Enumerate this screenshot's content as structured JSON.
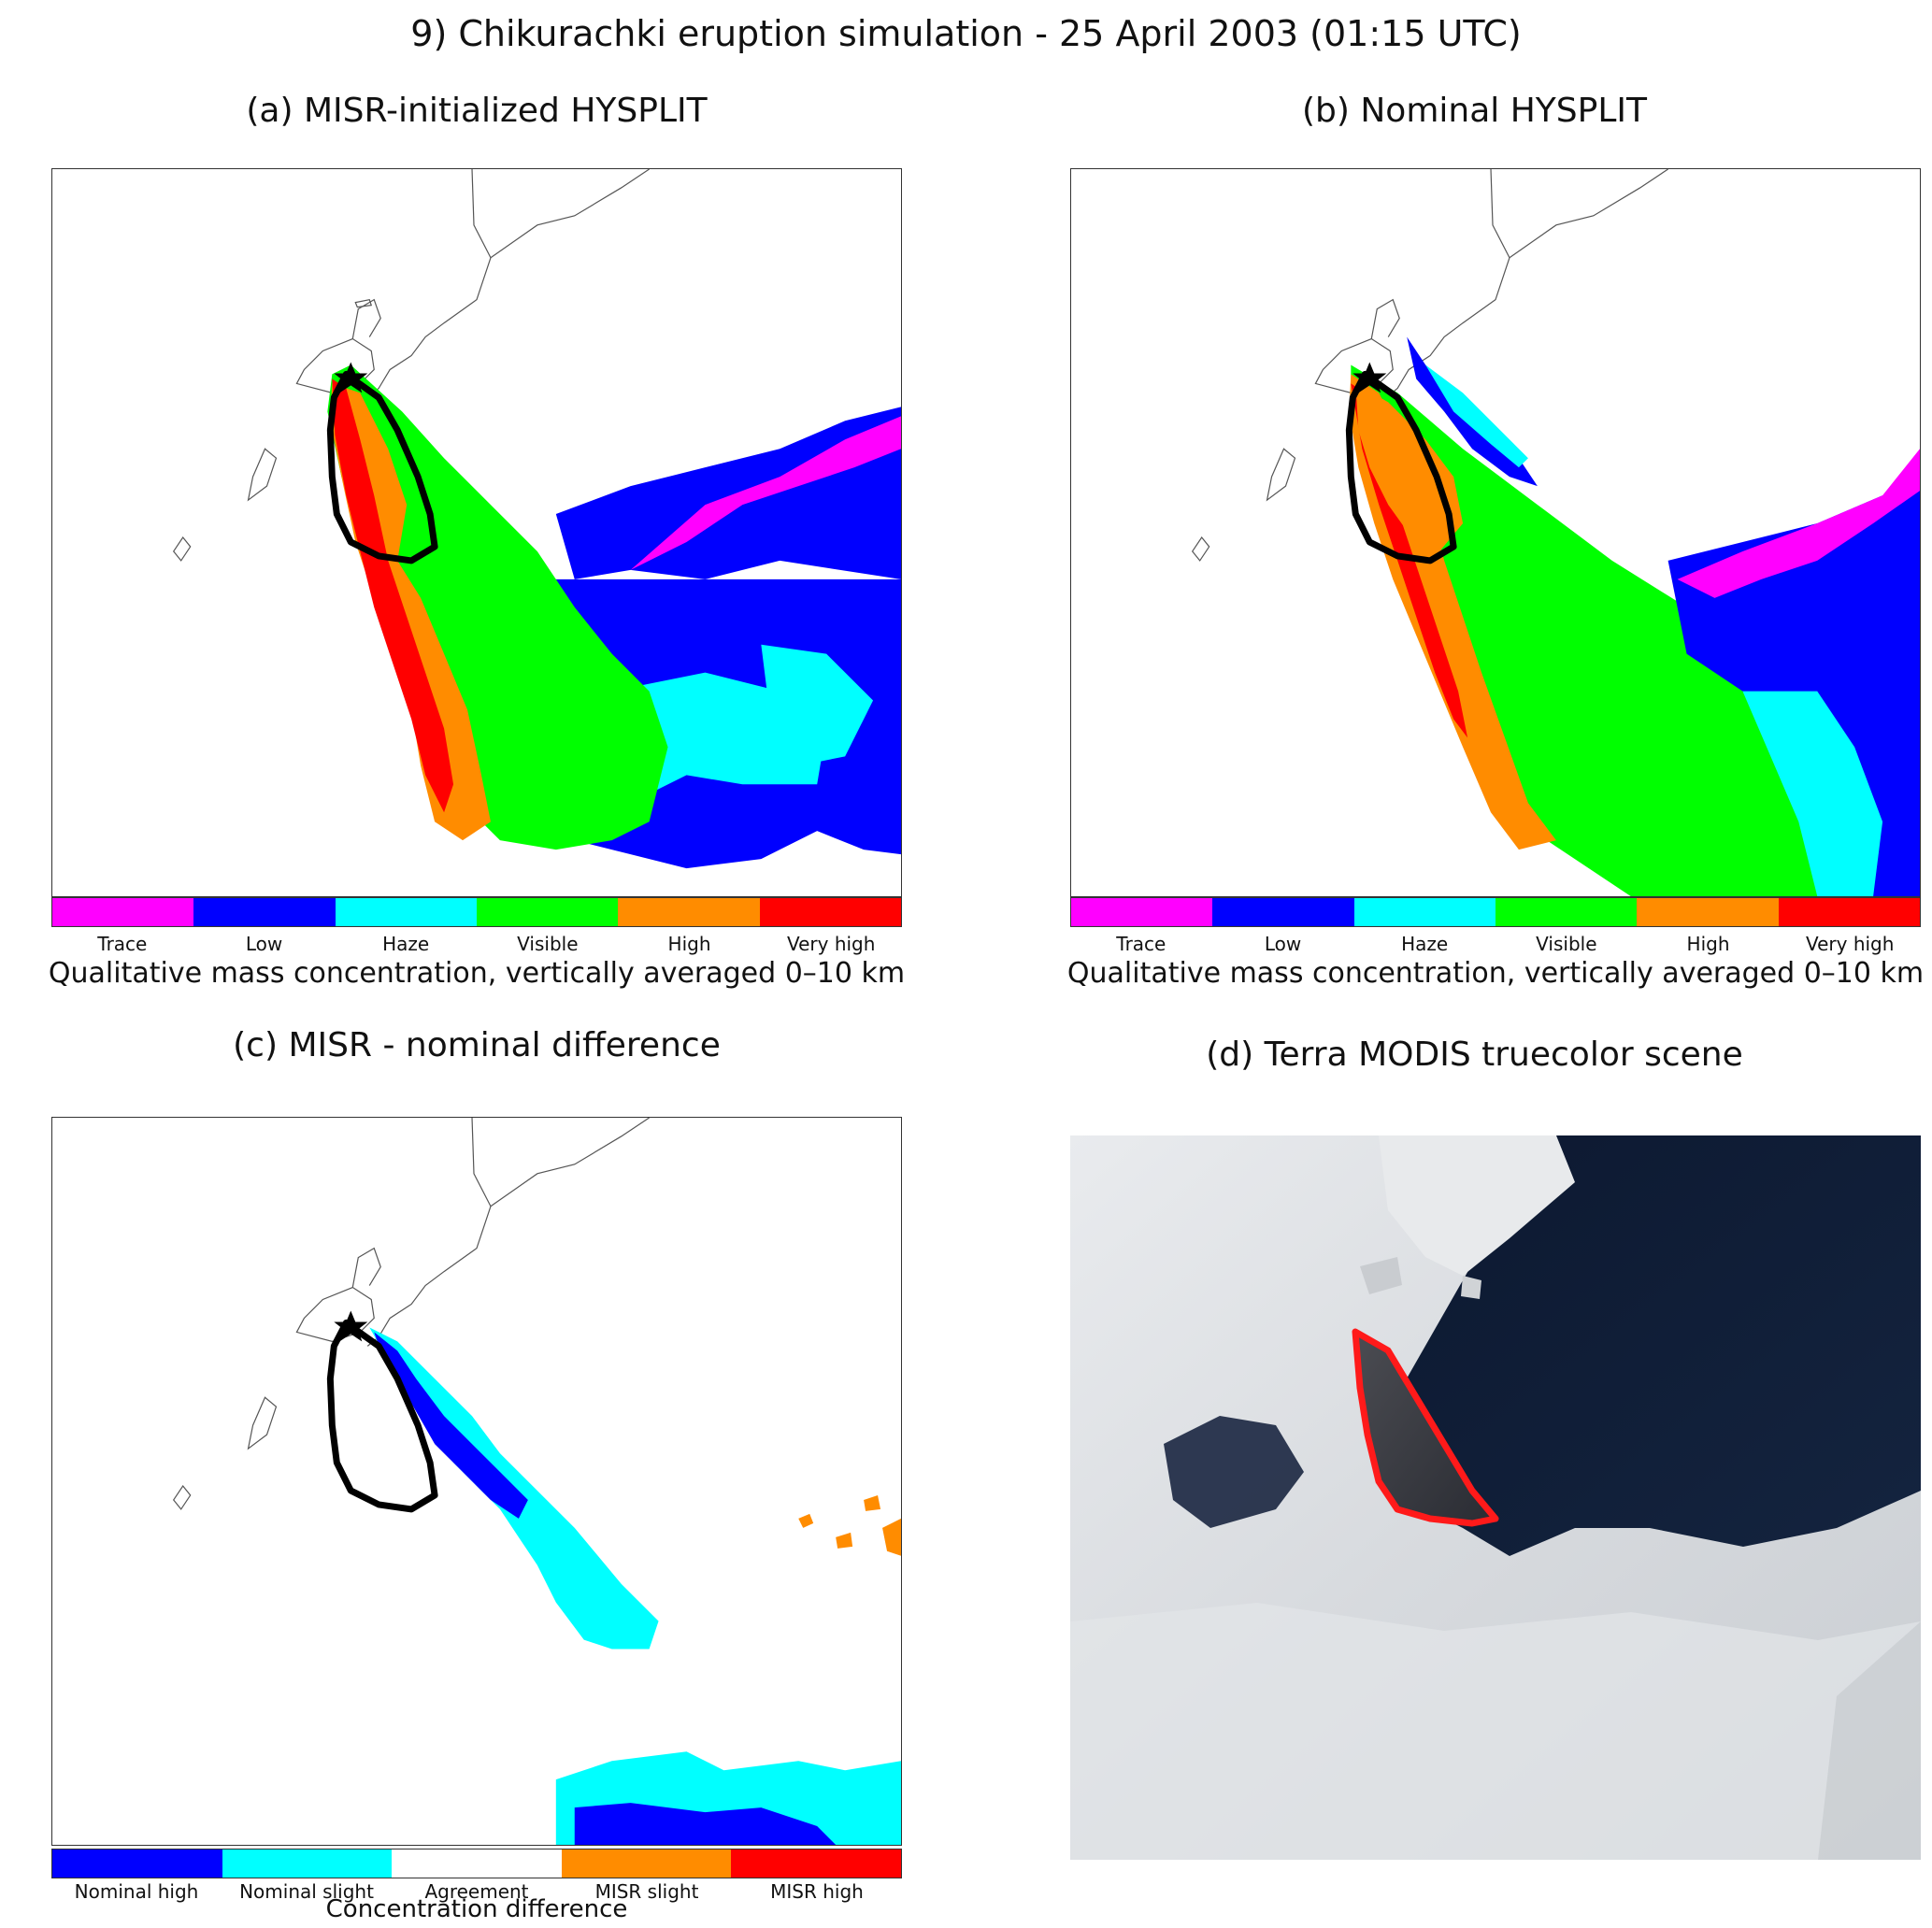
{
  "title": "9) Chikurachki eruption simulation  -  25 April 2003 (01:15 UTC)",
  "panels": {
    "a": {
      "title": "(a) MISR-initialized HYSPLIT"
    },
    "b": {
      "title": "(b) Nominal HYSPLIT"
    },
    "c": {
      "title": "(c) MISR - nominal difference"
    },
    "d": {
      "title": "(d) Terra MODIS truecolor scene"
    }
  },
  "colorbar_concentration": {
    "title": "Qualitative mass concentration, vertically averaged 0–10 km",
    "labels": [
      "Trace",
      "Low",
      "Haze",
      "Visible",
      "High",
      "Very high"
    ],
    "colors": [
      "#ff00ff",
      "#0000ff",
      "#00ffff",
      "#00ff00",
      "#ff8c00",
      "#ff0000"
    ]
  },
  "colorbar_difference": {
    "title": "Concentration difference",
    "labels": [
      "Nominal high",
      "Nominal slight",
      "Agreement",
      "MISR slight",
      "MISR high"
    ],
    "colors": [
      "#0000ff",
      "#00ffff",
      "#ffffff",
      "#ff8c00",
      "#ff0000"
    ]
  },
  "marker": {
    "icon": "star-icon",
    "color": "#000000"
  },
  "outline_colors": {
    "misr_plume": "#000000",
    "modis_plume": "#ff1a1a"
  }
}
